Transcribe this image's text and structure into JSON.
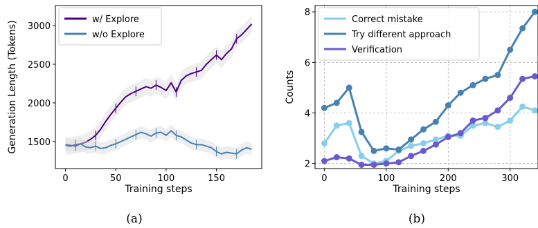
{
  "chart_data": [
    {
      "type": "line",
      "caption": "(a)",
      "title": "",
      "xlabel": "Training steps",
      "ylabel": "Generation Length (Tokens)",
      "xlim": [
        -10,
        195
      ],
      "ylim": [
        1150,
        3260
      ],
      "xticks": [
        0,
        50,
        100,
        150
      ],
      "yticks": [
        1500,
        2000,
        2500,
        3000
      ],
      "grid": false,
      "legend_position": "top-left",
      "series": [
        {
          "name": "w/ Explore",
          "color": "#4b0082",
          "band": 110,
          "x": [
            0,
            5,
            10,
            15,
            20,
            25,
            30,
            35,
            40,
            45,
            50,
            55,
            60,
            65,
            70,
            75,
            80,
            85,
            90,
            95,
            100,
            105,
            110,
            115,
            120,
            125,
            130,
            135,
            140,
            145,
            150,
            155,
            160,
            165,
            170,
            175,
            180,
            185
          ],
          "y": [
            1450,
            1440,
            1460,
            1470,
            1490,
            1530,
            1580,
            1660,
            1760,
            1850,
            1930,
            2010,
            2080,
            2120,
            2150,
            2180,
            2210,
            2190,
            2230,
            2200,
            2160,
            2260,
            2140,
            2290,
            2350,
            2380,
            2400,
            2420,
            2500,
            2560,
            2620,
            2560,
            2640,
            2700,
            2830,
            2880,
            2950,
            3020
          ]
        },
        {
          "name": "w/o Explore",
          "color": "#4682b4",
          "band": 80,
          "x": [
            0,
            5,
            10,
            15,
            20,
            25,
            30,
            35,
            40,
            45,
            50,
            55,
            60,
            65,
            70,
            75,
            80,
            85,
            90,
            95,
            100,
            105,
            110,
            115,
            120,
            125,
            130,
            135,
            140,
            145,
            150,
            155,
            160,
            165,
            170,
            175,
            180,
            185
          ],
          "y": [
            1460,
            1450,
            1440,
            1470,
            1430,
            1420,
            1440,
            1410,
            1420,
            1450,
            1470,
            1500,
            1530,
            1560,
            1590,
            1620,
            1600,
            1570,
            1610,
            1620,
            1580,
            1640,
            1580,
            1560,
            1520,
            1480,
            1460,
            1460,
            1440,
            1420,
            1370,
            1340,
            1360,
            1350,
            1340,
            1390,
            1420,
            1400
          ]
        }
      ]
    },
    {
      "type": "line",
      "caption": "(b)",
      "title": "",
      "xlabel": "Training steps",
      "ylabel": "Counts",
      "xlim": [
        -15,
        345
      ],
      "ylim": [
        1.8,
        8.25
      ],
      "xticks": [
        0,
        100,
        200,
        300
      ],
      "yticks": [
        2,
        4,
        6,
        8
      ],
      "grid": true,
      "legend_position": "top-left",
      "series": [
        {
          "name": "Correct mistake",
          "color": "#87ceeb",
          "x": [
            0,
            20,
            40,
            60,
            80,
            100,
            120,
            140,
            160,
            180,
            200,
            220,
            240,
            260,
            280,
            300,
            320,
            340
          ],
          "y": [
            2.8,
            3.5,
            3.6,
            2.3,
            2.0,
            2.1,
            2.5,
            2.7,
            2.8,
            2.95,
            3.1,
            3.1,
            3.5,
            3.6,
            3.45,
            3.7,
            4.25,
            4.1
          ]
        },
        {
          "name": "Try different approach",
          "color": "#4682b4",
          "x": [
            0,
            20,
            40,
            60,
            80,
            100,
            120,
            140,
            160,
            180,
            200,
            220,
            240,
            260,
            280,
            300,
            320,
            340
          ],
          "y": [
            4.2,
            4.4,
            5.0,
            3.25,
            2.5,
            2.6,
            2.55,
            2.95,
            3.35,
            3.65,
            4.3,
            4.8,
            5.1,
            5.35,
            5.5,
            6.5,
            7.35,
            8.0
          ]
        },
        {
          "name": "Verification",
          "color": "#6a5acd",
          "x": [
            0,
            20,
            40,
            60,
            80,
            100,
            120,
            140,
            160,
            180,
            200,
            220,
            240,
            260,
            280,
            300,
            320,
            340
          ],
          "y": [
            2.1,
            2.25,
            2.2,
            1.95,
            1.95,
            2.0,
            2.05,
            2.3,
            2.5,
            2.75,
            3.05,
            3.2,
            3.7,
            3.8,
            4.1,
            4.6,
            5.35,
            5.45
          ]
        }
      ]
    }
  ]
}
